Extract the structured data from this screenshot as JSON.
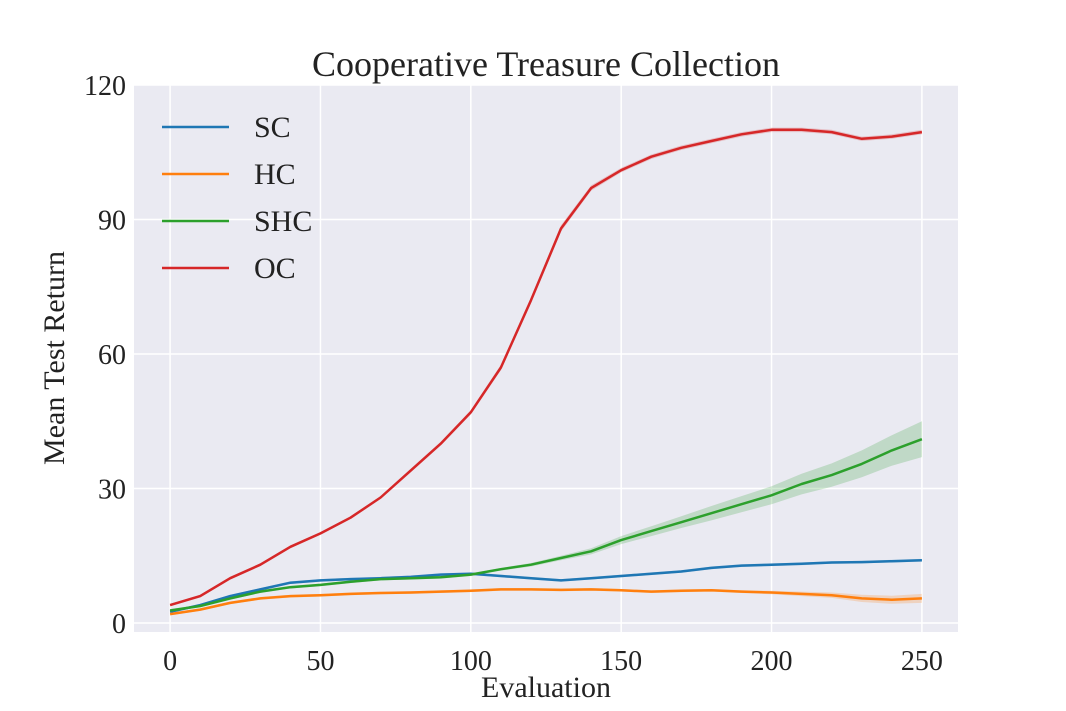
{
  "chart_data": {
    "type": "line",
    "title": "Cooperative Treasure Collection",
    "xlabel": "Evaluation",
    "ylabel": "Mean Test Return",
    "xlim": [
      -12,
      262
    ],
    "ylim": [
      -2,
      120
    ],
    "xticks": [
      0,
      50,
      100,
      150,
      200,
      250
    ],
    "yticks": [
      0,
      30,
      60,
      90,
      120
    ],
    "grid": true,
    "legend_position": "top-left",
    "x": [
      0,
      10,
      20,
      30,
      40,
      50,
      60,
      70,
      80,
      90,
      100,
      110,
      120,
      130,
      140,
      150,
      160,
      170,
      180,
      190,
      200,
      210,
      220,
      230,
      240,
      250
    ],
    "series": [
      {
        "name": "SC",
        "color": "#1f77b4",
        "values": [
          2.5,
          4,
          6,
          7.5,
          9,
          9.5,
          9.8,
          10,
          10.3,
          10.8,
          11,
          10.5,
          10,
          9.5,
          10,
          10.5,
          11,
          11.5,
          12.3,
          12.8,
          13,
          13.2,
          13.5,
          13.6,
          13.8,
          14
        ],
        "band": [
          0.3,
          0.3,
          0.3,
          0.3,
          0.3,
          0.3,
          0.3,
          0.3,
          0.3,
          0.3,
          0.3,
          0.3,
          0.3,
          0.3,
          0.3,
          0.3,
          0.3,
          0.3,
          0.3,
          0.3,
          0.3,
          0.3,
          0.3,
          0.3,
          0.3,
          0.3
        ]
      },
      {
        "name": "HC",
        "color": "#ff7f0e",
        "values": [
          2,
          3,
          4.5,
          5.5,
          6,
          6.2,
          6.5,
          6.7,
          6.8,
          7,
          7.2,
          7.5,
          7.5,
          7.4,
          7.5,
          7.3,
          7,
          7.2,
          7.3,
          7,
          6.8,
          6.5,
          6.2,
          5.5,
          5.2,
          5.5
        ],
        "band": [
          0.3,
          0.3,
          0.3,
          0.3,
          0.3,
          0.3,
          0.3,
          0.3,
          0.3,
          0.3,
          0.3,
          0.3,
          0.3,
          0.3,
          0.3,
          0.3,
          0.3,
          0.3,
          0.3,
          0.3,
          0.4,
          0.5,
          0.6,
          0.8,
          0.9,
          1
        ]
      },
      {
        "name": "SHC",
        "color": "#2ca02c",
        "values": [
          2.8,
          3.8,
          5.5,
          7,
          8,
          8.5,
          9.2,
          9.8,
          10,
          10.2,
          10.8,
          12,
          13,
          14.5,
          16,
          18.5,
          20.5,
          22.5,
          24.5,
          26.5,
          28.5,
          31,
          33,
          35.5,
          38.5,
          41
        ],
        "band": [
          0.3,
          0.3,
          0.3,
          0.3,
          0.3,
          0.3,
          0.3,
          0.3,
          0.3,
          0.3,
          0.3,
          0.3,
          0.4,
          0.5,
          0.7,
          0.9,
          1.1,
          1.3,
          1.6,
          1.8,
          2,
          2.3,
          2.6,
          3,
          3.4,
          4
        ]
      },
      {
        "name": "OC",
        "color": "#d62728",
        "values": [
          4,
          6,
          10,
          13,
          17,
          20,
          23.5,
          28,
          34,
          40,
          47,
          57,
          72,
          88,
          97,
          101,
          104,
          106,
          107.5,
          109,
          110,
          110,
          109.5,
          108,
          108.5,
          109.5
        ],
        "band": [
          0.3,
          0.3,
          0.3,
          0.3,
          0.3,
          0.3,
          0.3,
          0.3,
          0.4,
          0.4,
          0.5,
          0.6,
          0.7,
          0.7,
          0.6,
          0.5,
          0.5,
          0.5,
          0.5,
          0.5,
          0.5,
          0.5,
          0.5,
          0.5,
          0.5,
          0.5
        ]
      }
    ]
  }
}
